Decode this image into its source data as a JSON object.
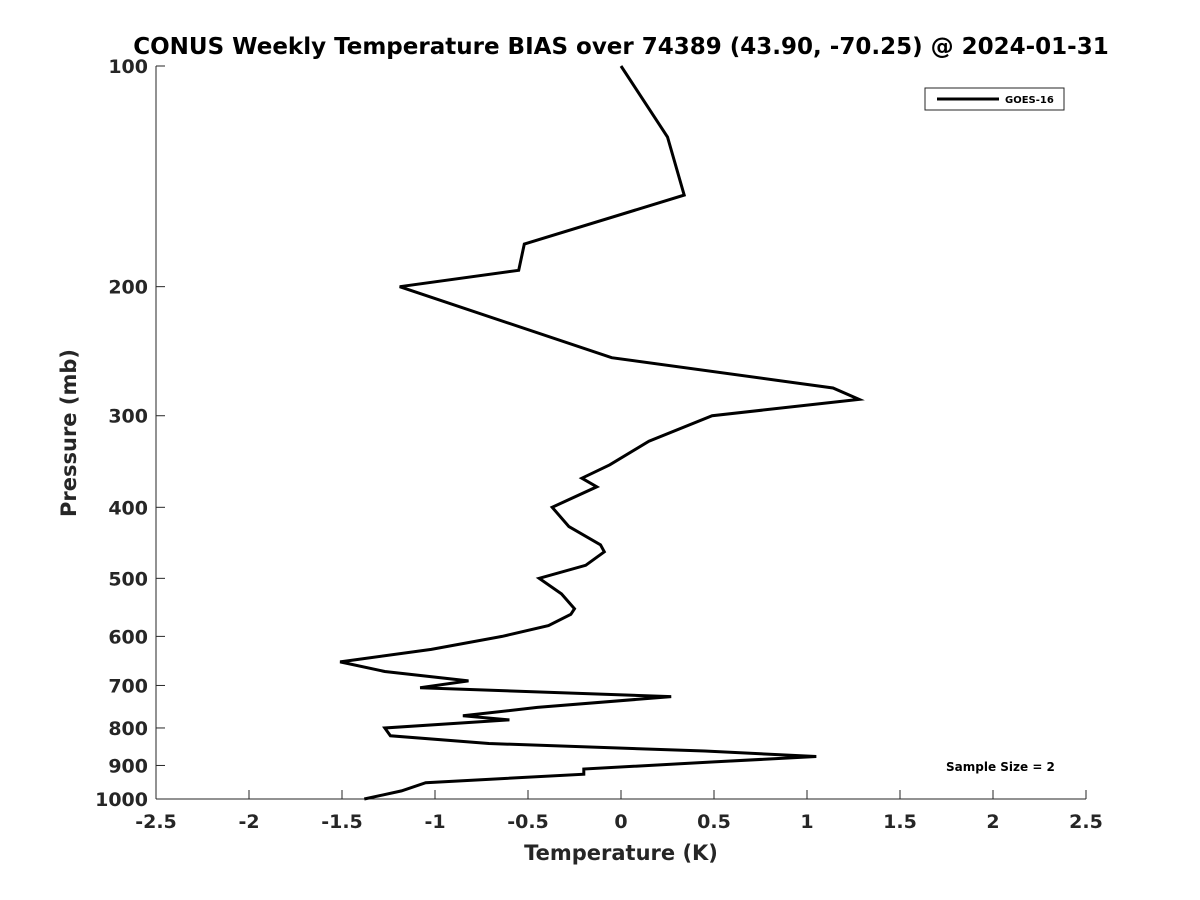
{
  "chart_data": {
    "type": "line",
    "title": "CONUS Weekly Temperature BIAS over 74389 (43.90, -70.25) @ 2024-01-31",
    "xlabel": "Temperature (K)",
    "ylabel": "Pressure (mb)",
    "xlim": [
      -2.5,
      2.5
    ],
    "ylim": [
      100,
      1000
    ],
    "yscale": "log",
    "yreversed": true,
    "xticks": [
      -2.5,
      -2,
      -1.5,
      -1,
      -0.5,
      0,
      0.5,
      1,
      1.5,
      2,
      2.5
    ],
    "xtick_labels": [
      "-2.5",
      "-2",
      "-1.5",
      "-1",
      "-0.5",
      "0",
      "0.5",
      "1",
      "1.5",
      "2",
      "2.5"
    ],
    "yticks": [
      100,
      200,
      300,
      400,
      500,
      600,
      700,
      800,
      900,
      1000
    ],
    "ytick_labels": [
      "100",
      "200",
      "300",
      "400",
      "500",
      "600",
      "700",
      "800",
      "900",
      "1000"
    ],
    "grid": false,
    "legend": "top-right",
    "annotation": "Sample Size = 2",
    "series": [
      {
        "name": "GOES-16",
        "color": "#000000",
        "points": [
          {
            "x": 0.0,
            "p": 100
          },
          {
            "x": 0.25,
            "p": 125
          },
          {
            "x": 0.34,
            "p": 150
          },
          {
            "x": -0.52,
            "p": 175
          },
          {
            "x": -0.55,
            "p": 190
          },
          {
            "x": -1.19,
            "p": 200
          },
          {
            "x": -0.05,
            "p": 250
          },
          {
            "x": 1.14,
            "p": 275
          },
          {
            "x": 1.28,
            "p": 285
          },
          {
            "x": 0.49,
            "p": 300
          },
          {
            "x": 0.15,
            "p": 325
          },
          {
            "x": -0.06,
            "p": 350
          },
          {
            "x": -0.21,
            "p": 365
          },
          {
            "x": -0.13,
            "p": 375
          },
          {
            "x": -0.37,
            "p": 400
          },
          {
            "x": -0.28,
            "p": 425
          },
          {
            "x": -0.11,
            "p": 450
          },
          {
            "x": -0.09,
            "p": 460
          },
          {
            "x": -0.19,
            "p": 480
          },
          {
            "x": -0.44,
            "p": 500
          },
          {
            "x": -0.32,
            "p": 525
          },
          {
            "x": -0.25,
            "p": 550
          },
          {
            "x": -0.27,
            "p": 560
          },
          {
            "x": -0.39,
            "p": 580
          },
          {
            "x": -0.64,
            "p": 600
          },
          {
            "x": -1.02,
            "p": 625
          },
          {
            "x": -1.51,
            "p": 650
          },
          {
            "x": -1.27,
            "p": 670
          },
          {
            "x": -0.82,
            "p": 690
          },
          {
            "x": -1.08,
            "p": 705
          },
          {
            "x": 0.27,
            "p": 725
          },
          {
            "x": -0.45,
            "p": 750
          },
          {
            "x": -0.85,
            "p": 770
          },
          {
            "x": -0.6,
            "p": 780
          },
          {
            "x": -1.27,
            "p": 800
          },
          {
            "x": -1.24,
            "p": 820
          },
          {
            "x": -0.71,
            "p": 840
          },
          {
            "x": 0.45,
            "p": 860
          },
          {
            "x": 1.05,
            "p": 875
          },
          {
            "x": 0.5,
            "p": 890
          },
          {
            "x": -0.2,
            "p": 910
          },
          {
            "x": -0.2,
            "p": 925
          },
          {
            "x": -1.05,
            "p": 950
          },
          {
            "x": -1.18,
            "p": 975
          },
          {
            "x": -1.38,
            "p": 1000
          }
        ]
      }
    ]
  }
}
